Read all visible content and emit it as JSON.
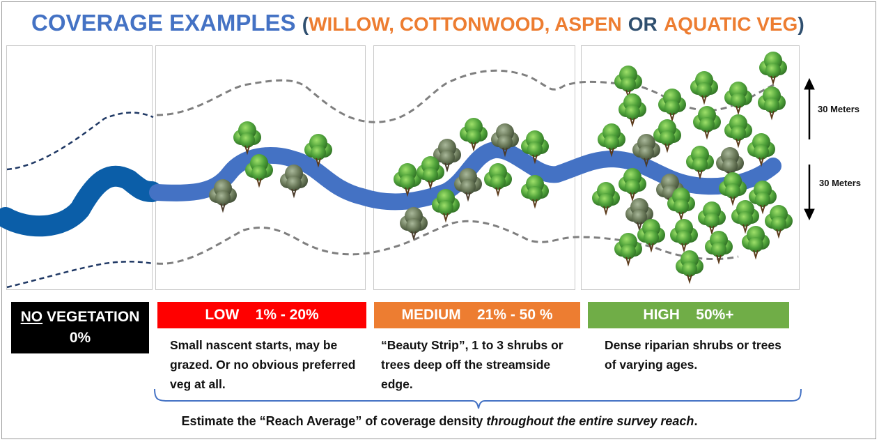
{
  "title": {
    "main": "COVERAGE EXAMPLES",
    "open_paren": "(",
    "part1": "WILLOW, COTTONWOOD, ASPEN",
    "or_word": "OR",
    "part2": "AQUATIC VEG",
    "close_paren": ")"
  },
  "categories": [
    {
      "id": "none",
      "label_underlined": "NO",
      "label_rest": "VEGETATION",
      "value": "0%",
      "color": "#000000"
    },
    {
      "id": "low",
      "label": "LOW",
      "range": "1% - 20%",
      "color": "#ff0000",
      "description": "Small nascent starts, may be grazed. Or no obvious preferred veg at all."
    },
    {
      "id": "medium",
      "label": "MEDIUM",
      "range": "21% - 50 %",
      "color": "#ed7d31",
      "description": "“Beauty Strip”, 1 to 3 shrubs or trees deep off the streamside edge."
    },
    {
      "id": "high",
      "label": "HIGH",
      "range": "50%+",
      "color": "#70ad47",
      "description": "Dense riparian shrubs or trees of varying ages."
    }
  ],
  "measures": {
    "upper": "30 Meters",
    "lower": "30 Meters"
  },
  "footer": {
    "prefix": "Estimate the “Reach Average” of coverage density ",
    "emphasis": "throughout the entire survey reach",
    "suffix": "."
  },
  "colors": {
    "stream_dark": "#0b5ea8",
    "stream": "#4472c4",
    "buffer_dark": "#1f3864",
    "buffer": "#7f7f7f",
    "title": "#4472c4",
    "accent": "#ed7d31"
  }
}
